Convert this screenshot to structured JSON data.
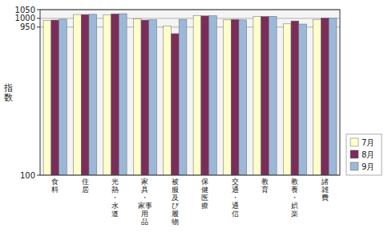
{
  "chart_data": {
    "type": "bar",
    "ylabel": "指\n数",
    "categories": [
      "食\n料",
      "住\n居",
      "光\n熱\n・\n水\n道",
      "家\n具\n・\n家事\n用\n品",
      "被\n服\n及\nび\n履\n物",
      "保\n健\n医\n療",
      "交\n通\n・\n通\n信",
      "教\n育",
      "教\n養\n・\n娯\n楽",
      "諸\n雑\n費"
    ],
    "series": [
      {
        "name": "7月",
        "color": "#FFFFCC",
        "values": [
          987,
          1022,
          1021,
          997,
          957,
          1015,
          991,
          1011,
          968,
          994
        ]
      },
      {
        "name": "8月",
        "color": "#7B2D5A",
        "values": [
          990,
          1022,
          1026,
          990,
          912,
          1014,
          994,
          1011,
          985,
          1002
        ]
      },
      {
        "name": "9月",
        "color": "#9CB8D9",
        "values": [
          995,
          1023,
          1027,
          992,
          994,
          1015,
          991,
          1012,
          967,
          1001
        ]
      }
    ],
    "ylim": [
      100,
      1050
    ],
    "yticks": [
      100,
      950,
      1000,
      1050
    ],
    "grid": true,
    "legend": "lower right"
  }
}
